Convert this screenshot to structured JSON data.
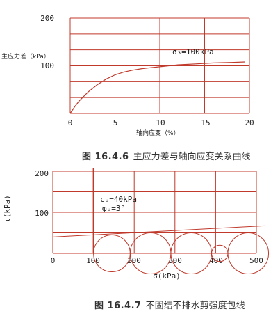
{
  "chart_data": [
    {
      "type": "line",
      "caption_number": "图 16.4.6",
      "caption_text": "主应力差与轴向应变关系曲线",
      "ylabel": "主应力差（kPa）",
      "xlabel": "轴向应变（%）",
      "annotation": "σ₃=100kPa",
      "xlim": [
        0,
        20
      ],
      "ylim": [
        0,
        200
      ],
      "x_ticks": [
        "0",
        "5",
        "10",
        "15",
        "20"
      ],
      "y_ticks": [
        "100",
        "200"
      ],
      "grid": true,
      "series": [
        {
          "x": [
            0,
            0.5,
            1,
            2,
            3,
            4,
            5,
            6,
            7,
            8,
            9,
            10,
            11,
            12,
            14,
            16,
            18,
            19.5
          ],
          "y": [
            0,
            14,
            26,
            45,
            60,
            72,
            81,
            87,
            91,
            94,
            96,
            98,
            100,
            102,
            104,
            106,
            107,
            108
          ]
        }
      ]
    },
    {
      "type": "line",
      "caption_number": "图 16.4.7",
      "caption_text": "不固结不排水剪强度包线",
      "ylabel": "τ(kPa)",
      "xlabel": "σ(kPa)",
      "annotations": [
        "cᵤ=40kPa",
        "φᵤ=3°"
      ],
      "xlim": [
        0,
        500
      ],
      "ylim": [
        0,
        200
      ],
      "x_ticks": [
        "0",
        "100",
        "200",
        "300",
        "400",
        "500"
      ],
      "y_ticks": [
        "100",
        "200"
      ],
      "grid": true,
      "envelope": {
        "c": 40,
        "phi_deg": 3
      },
      "mohr_circles": [
        {
          "sigma3": 100,
          "sigma1": 190
        },
        {
          "sigma3": 190,
          "sigma1": 290
        },
        {
          "sigma3": 290,
          "sigma1": 390
        },
        {
          "sigma3": 390,
          "sigma1": 430
        },
        {
          "sigma3": 430,
          "sigma1": 530
        }
      ]
    }
  ]
}
